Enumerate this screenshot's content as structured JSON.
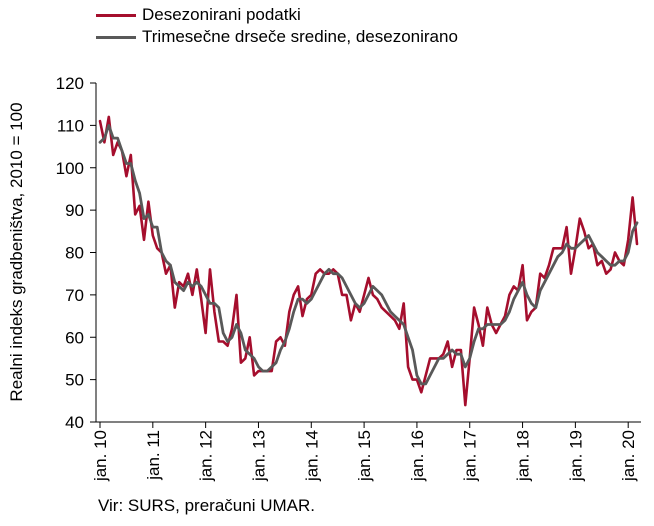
{
  "chart_data": {
    "type": "line",
    "ylabel": "Realni indeks gradbeništva, 2010 = 100",
    "ylim": [
      40,
      120
    ],
    "yticks": [
      40,
      50,
      60,
      70,
      80,
      90,
      100,
      110,
      120
    ],
    "grid": false,
    "legend_position": "top-left",
    "xtick_labels": [
      "jan. 10",
      "jan. 11",
      "jan. 12",
      "jan. 13",
      "jan. 14",
      "jan. 15",
      "jan. 16",
      "jan. 17",
      "jan. 18",
      "jan. 19",
      "jan. 20"
    ],
    "x_start": "2010-01",
    "x_frequency": "monthly",
    "series": [
      {
        "name": "Desezonirani podatki",
        "color": "#a50e2d",
        "values": [
          111,
          106,
          112,
          103,
          106,
          104,
          98,
          103,
          89,
          91,
          83,
          92,
          84,
          81,
          80,
          75,
          77,
          67,
          73,
          72,
          75,
          70,
          76,
          69,
          61,
          76,
          66,
          59,
          59,
          58,
          62,
          70,
          54,
          55,
          60,
          51,
          52,
          52,
          52,
          52,
          59,
          60,
          58,
          66,
          70,
          72,
          65,
          69,
          70,
          75,
          76,
          75,
          75,
          76,
          75,
          70,
          70,
          64,
          68,
          66,
          70,
          74,
          70,
          69,
          67,
          66,
          65,
          64,
          62,
          68,
          53,
          50,
          50,
          47,
          51,
          55,
          55,
          55,
          56,
          59,
          53,
          57,
          57,
          44,
          55,
          67,
          63,
          58,
          67,
          63,
          61,
          63,
          65,
          70,
          72,
          71,
          77,
          64,
          66,
          67,
          75,
          74,
          77,
          81,
          81,
          81,
          86,
          75,
          81,
          88,
          85,
          81,
          82,
          77,
          78,
          75,
          76,
          80,
          78,
          77,
          83,
          93,
          82
        ]
      },
      {
        "name": "Trimesečne drseče sredine, desezonirano",
        "color": "#595959",
        "values": [
          106,
          107,
          110,
          107,
          107,
          104,
          101,
          101,
          97,
          94,
          88,
          89,
          86,
          86,
          80,
          78,
          77,
          73,
          72,
          71,
          73,
          72,
          73,
          72,
          70,
          68,
          68,
          67,
          61,
          59,
          60,
          63,
          61,
          57,
          56,
          55,
          53,
          52,
          52,
          53,
          54,
          57,
          59,
          62,
          66,
          69,
          69,
          68,
          69,
          71,
          73,
          75,
          76,
          75,
          75,
          74,
          72,
          70,
          68,
          67,
          68,
          70,
          72,
          71,
          70,
          68,
          66,
          65,
          64,
          63,
          60,
          57,
          51,
          49,
          49,
          51,
          53,
          55,
          55,
          56,
          57,
          56,
          56,
          53,
          55,
          59,
          62,
          62,
          63,
          63,
          63,
          63,
          64,
          66,
          69,
          71,
          73,
          70,
          68,
          67,
          71,
          73,
          75,
          77,
          79,
          80,
          82,
          81,
          81,
          82,
          83,
          84,
          82,
          80,
          79,
          78,
          77,
          77,
          78,
          78,
          80,
          85,
          87
        ]
      }
    ]
  },
  "source_note": "Vir: SURS, preračuni UMAR."
}
